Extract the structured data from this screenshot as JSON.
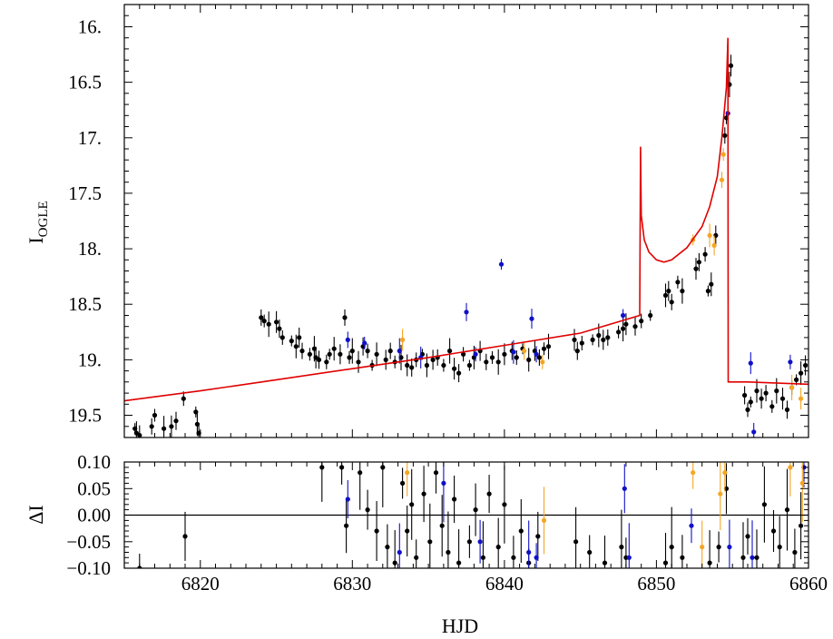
{
  "chart_data": [
    {
      "type": "scatter",
      "panel": "light-curve",
      "ylabel": "I",
      "ylabel_subscript": "OGLE",
      "xlabel": "",
      "xlim": [
        6815,
        6860
      ],
      "ylim": [
        19.7,
        15.8
      ],
      "y_inverted": true,
      "yticks": [
        16.0,
        16.5,
        17.0,
        17.5,
        18.0,
        18.5,
        19.0,
        19.5
      ],
      "ytick_labels": [
        "16.",
        "16.5",
        "17.",
        "17.5",
        "18.",
        "18.5",
        "19.",
        "19.5"
      ],
      "colors": {
        "ogle": "#000000",
        "blue_site": "#1010c8",
        "orange_site": "#f5a623",
        "model": "#e00000"
      },
      "model_curve": {
        "name": "",
        "x": [
          6815.0,
          6820.0,
          6825.0,
          6830.0,
          6835.0,
          6840.0,
          6845.0,
          6848.9,
          6848.95,
          6849.0,
          6849.2,
          6849.5,
          6850.0,
          6850.5,
          6851.0,
          6852.0,
          6853.0,
          6853.5,
          6854.0,
          6854.3,
          6854.6,
          6854.7,
          6854.72,
          6856.0,
          6860.0
        ],
        "y": [
          19.37,
          19.28,
          19.18,
          19.08,
          18.98,
          18.87,
          18.76,
          18.6,
          17.08,
          17.7,
          17.92,
          18.03,
          18.1,
          18.12,
          18.1,
          17.99,
          17.8,
          17.62,
          17.35,
          17.0,
          16.55,
          16.1,
          19.2,
          19.2,
          19.22
        ]
      },
      "series": [
        {
          "color": "#000000",
          "points": [
            [
              6815.7,
              19.62
            ],
            [
              6815.8,
              19.66
            ],
            [
              6816.0,
              19.68
            ],
            [
              6816.8,
              19.6
            ],
            [
              6817.0,
              19.5
            ],
            [
              6817.6,
              19.62
            ],
            [
              6818.1,
              19.6
            ],
            [
              6818.4,
              19.55
            ],
            [
              6818.9,
              19.35
            ],
            [
              6819.7,
              19.47
            ],
            [
              6819.8,
              19.58
            ],
            [
              6819.9,
              19.66
            ],
            [
              6824.0,
              18.62
            ],
            [
              6824.2,
              18.65
            ],
            [
              6824.5,
              18.68
            ],
            [
              6825.0,
              18.66
            ],
            [
              6825.2,
              18.72
            ],
            [
              6825.4,
              18.8
            ],
            [
              6826.0,
              18.83
            ],
            [
              6826.3,
              18.88
            ],
            [
              6826.5,
              18.8
            ],
            [
              6826.7,
              18.92
            ],
            [
              6827.2,
              18.95
            ],
            [
              6827.5,
              18.9
            ],
            [
              6827.6,
              18.98
            ],
            [
              6827.8,
              19.0
            ],
            [
              6828.3,
              19.02
            ],
            [
              6828.5,
              18.95
            ],
            [
              6828.8,
              18.9
            ],
            [
              6829.2,
              18.95
            ],
            [
              6829.5,
              18.62
            ],
            [
              6829.8,
              18.98
            ],
            [
              6830.0,
              18.92
            ],
            [
              6830.4,
              19.02
            ],
            [
              6830.7,
              18.88
            ],
            [
              6831.0,
              18.92
            ],
            [
              6831.3,
              19.05
            ],
            [
              6831.6,
              18.95
            ],
            [
              6832.2,
              19.0
            ],
            [
              6832.5,
              18.92
            ],
            [
              6832.8,
              19.02
            ],
            [
              6833.2,
              18.98
            ],
            [
              6833.6,
              19.05
            ],
            [
              6833.9,
              19.07
            ],
            [
              6834.2,
              19.0
            ],
            [
              6834.6,
              18.95
            ],
            [
              6834.9,
              19.05
            ],
            [
              6835.3,
              19.0
            ],
            [
              6835.6,
              18.98
            ],
            [
              6836.0,
              19.05
            ],
            [
              6836.4,
              18.92
            ],
            [
              6836.7,
              19.08
            ],
            [
              6837.0,
              19.12
            ],
            [
              6837.3,
              18.95
            ],
            [
              6837.7,
              19.05
            ],
            [
              6838.0,
              18.98
            ],
            [
              6838.4,
              18.92
            ],
            [
              6838.8,
              19.02
            ],
            [
              6839.2,
              18.98
            ],
            [
              6839.6,
              19.02
            ],
            [
              6840.0,
              18.95
            ],
            [
              6840.5,
              18.92
            ],
            [
              6840.8,
              18.98
            ],
            [
              6841.2,
              18.9
            ],
            [
              6841.6,
              19.0
            ],
            [
              6842.0,
              18.92
            ],
            [
              6842.3,
              18.98
            ],
            [
              6842.6,
              18.9
            ],
            [
              6842.9,
              18.88
            ],
            [
              6844.6,
              18.82
            ],
            [
              6844.8,
              18.92
            ],
            [
              6845.1,
              18.85
            ],
            [
              6845.8,
              18.82
            ],
            [
              6846.2,
              18.78
            ],
            [
              6846.5,
              18.82
            ],
            [
              6846.8,
              18.8
            ],
            [
              6847.5,
              18.75
            ],
            [
              6847.8,
              18.72
            ],
            [
              6848.0,
              18.68
            ],
            [
              6848.6,
              18.7
            ],
            [
              6849.0,
              18.65
            ],
            [
              6849.6,
              18.6
            ],
            [
              6850.6,
              18.42
            ],
            [
              6850.8,
              18.38
            ],
            [
              6851.0,
              18.48
            ],
            [
              6851.4,
              18.3
            ],
            [
              6851.7,
              18.38
            ],
            [
              6852.6,
              18.18
            ],
            [
              6852.8,
              18.12
            ],
            [
              6853.2,
              18.05
            ],
            [
              6853.4,
              18.38
            ],
            [
              6853.6,
              18.32
            ],
            [
              6853.9,
              17.88
            ],
            [
              6854.5,
              16.98
            ],
            [
              6854.6,
              16.82
            ],
            [
              6854.8,
              16.52
            ],
            [
              6854.9,
              16.35
            ],
            [
              6855.8,
              19.32
            ],
            [
              6856.0,
              19.45
            ],
            [
              6856.2,
              19.38
            ],
            [
              6856.6,
              19.28
            ],
            [
              6856.9,
              19.35
            ],
            [
              6857.2,
              19.3
            ],
            [
              6857.6,
              19.42
            ],
            [
              6857.9,
              19.28
            ],
            [
              6858.3,
              19.35
            ],
            [
              6858.6,
              19.45
            ],
            [
              6858.9,
              19.25
            ],
            [
              6859.2,
              19.18
            ],
            [
              6859.5,
              19.12
            ],
            [
              6859.8,
              19.05
            ]
          ]
        },
        {
          "color": "#1010c8",
          "points": [
            [
              6829.7,
              18.82
            ],
            [
              6830.8,
              18.85
            ],
            [
              6833.1,
              18.92
            ],
            [
              6834.5,
              18.98
            ],
            [
              6837.5,
              18.57
            ],
            [
              6838.1,
              18.95
            ],
            [
              6839.8,
              18.14
            ],
            [
              6840.6,
              18.93
            ],
            [
              6841.8,
              18.63
            ],
            [
              6842.1,
              18.95
            ],
            [
              6847.8,
              18.6
            ],
            [
              6854.7,
              16.78
            ],
            [
              6856.2,
              19.03
            ],
            [
              6856.4,
              19.65
            ],
            [
              6858.8,
              19.02
            ]
          ]
        },
        {
          "color": "#f5a623",
          "points": [
            [
              6833.3,
              18.82
            ],
            [
              6841.3,
              18.92
            ],
            [
              6842.5,
              19.02
            ],
            [
              6852.4,
              17.92
            ],
            [
              6853.5,
              17.88
            ],
            [
              6853.8,
              17.97
            ],
            [
              6854.3,
              17.38
            ],
            [
              6854.4,
              17.15
            ],
            [
              6858.9,
              19.25
            ],
            [
              6859.5,
              19.35
            ]
          ]
        }
      ]
    },
    {
      "type": "scatter",
      "panel": "residuals",
      "ylabel": "ΔI",
      "xlabel": "HJD",
      "xlim": [
        6815,
        6860
      ],
      "ylim": [
        -0.1,
        0.1
      ],
      "xticks": [
        6820,
        6830,
        6840,
        6850,
        6860
      ],
      "xtick_labels": [
        "6820",
        "6830",
        "6840",
        "6850",
        "6860"
      ],
      "yticks": [
        -0.1,
        -0.05,
        0.0,
        0.05,
        0.1
      ],
      "ytick_labels": [
        "−0.10",
        "−0.05",
        "0.00",
        "0.05",
        "0.10"
      ],
      "zero_line": true,
      "series": [
        {
          "color": "#000000",
          "points": [
            [
              6816.0,
              -0.1
            ],
            [
              6819.0,
              -0.04
            ],
            [
              6828.0,
              0.09
            ],
            [
              6829.3,
              0.09
            ],
            [
              6829.6,
              -0.02
            ],
            [
              6830.5,
              0.08
            ],
            [
              6831.0,
              0.01
            ],
            [
              6831.6,
              -0.03
            ],
            [
              6832.0,
              0.09
            ],
            [
              6832.3,
              -0.06
            ],
            [
              6832.8,
              -0.09
            ],
            [
              6833.3,
              0.06
            ],
            [
              6833.6,
              -0.03
            ],
            [
              6833.9,
              0.02
            ],
            [
              6834.2,
              -0.08
            ],
            [
              6834.7,
              0.04
            ],
            [
              6835.1,
              -0.05
            ],
            [
              6835.5,
              0.08
            ],
            [
              6835.9,
              -0.02
            ],
            [
              6836.3,
              -0.07
            ],
            [
              6836.7,
              0.03
            ],
            [
              6837.0,
              -0.09
            ],
            [
              6837.7,
              -0.05
            ],
            [
              6838.1,
              0.01
            ],
            [
              6838.6,
              -0.08
            ],
            [
              6839.0,
              0.04
            ],
            [
              6839.6,
              -0.06
            ],
            [
              6840.0,
              0.02
            ],
            [
              6840.6,
              -0.08
            ],
            [
              6841.1,
              -0.03
            ],
            [
              6841.6,
              -0.09
            ],
            [
              6842.2,
              -0.04
            ],
            [
              6844.7,
              -0.05
            ],
            [
              6845.6,
              -0.07
            ],
            [
              6846.6,
              -0.09
            ],
            [
              6847.7,
              -0.06
            ],
            [
              6848.0,
              -0.08
            ],
            [
              6850.6,
              -0.09
            ],
            [
              6851.0,
              -0.06
            ],
            [
              6851.7,
              -0.08
            ],
            [
              6853.5,
              -0.09
            ],
            [
              6854.1,
              -0.06
            ],
            [
              6854.6,
              0.05
            ],
            [
              6855.7,
              -0.08
            ],
            [
              6856.0,
              -0.04
            ],
            [
              6856.6,
              -0.08
            ],
            [
              6857.1,
              0.02
            ],
            [
              6857.7,
              -0.03
            ],
            [
              6858.1,
              -0.06
            ],
            [
              6858.6,
              0.01
            ],
            [
              6859.1,
              -0.07
            ],
            [
              6859.5,
              -0.02
            ]
          ]
        },
        {
          "color": "#1010c8",
          "points": [
            [
              6829.7,
              0.03
            ],
            [
              6833.1,
              -0.07
            ],
            [
              6836.0,
              0.06
            ],
            [
              6838.4,
              -0.05
            ],
            [
              6841.6,
              -0.07
            ],
            [
              6842.1,
              -0.08
            ],
            [
              6847.9,
              0.05
            ],
            [
              6848.2,
              -0.08
            ],
            [
              6852.3,
              -0.02
            ],
            [
              6854.8,
              -0.06
            ],
            [
              6856.3,
              -0.08
            ],
            [
              6859.7,
              0.09
            ]
          ]
        },
        {
          "color": "#f5a623",
          "points": [
            [
              6833.6,
              0.08
            ],
            [
              6842.6,
              -0.01
            ],
            [
              6852.4,
              0.08
            ],
            [
              6853.0,
              -0.06
            ],
            [
              6854.2,
              0.04
            ],
            [
              6854.5,
              0.08
            ],
            [
              6858.8,
              0.09
            ],
            [
              6859.6,
              0.06
            ]
          ]
        }
      ]
    }
  ]
}
